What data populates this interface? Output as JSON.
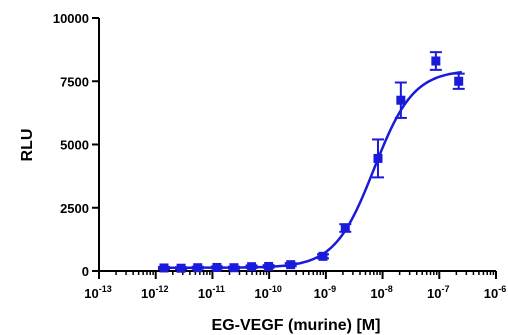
{
  "chart_data": {
    "type": "scatter",
    "title": "",
    "xlabel": "EG-VEGF (murine) [M]",
    "ylabel": "RLU",
    "x_scale": "log",
    "xlim": [
      1e-13,
      1e-06
    ],
    "ylim": [
      0,
      10000
    ],
    "x_ticks": [
      {
        "base": "10",
        "exp": "-13",
        "value": 1e-13
      },
      {
        "base": "10",
        "exp": "-12",
        "value": 1e-12
      },
      {
        "base": "10",
        "exp": "-11",
        "value": 1e-11
      },
      {
        "base": "10",
        "exp": "-10",
        "value": 1e-10
      },
      {
        "base": "10",
        "exp": "-9",
        "value": 1e-09
      },
      {
        "base": "10",
        "exp": "-8",
        "value": 1e-08
      },
      {
        "base": "10",
        "exp": "-7",
        "value": 1e-07
      },
      {
        "base": "10",
        "exp": "-6",
        "value": 1e-06
      }
    ],
    "y_ticks": [
      "0",
      "2500",
      "5000",
      "7500",
      "10000"
    ],
    "y_tick_values": [
      0,
      2500,
      5000,
      7500,
      10000
    ],
    "grid": false,
    "series": [
      {
        "color": "#1a1adb",
        "marker": "square",
        "points": [
          {
            "x": 1.4e-12,
            "y": 120,
            "err": 40
          },
          {
            "x": 2.8e-12,
            "y": 110,
            "err": 40
          },
          {
            "x": 5.5e-12,
            "y": 130,
            "err": 40
          },
          {
            "x": 1.2e-11,
            "y": 140,
            "err": 40
          },
          {
            "x": 2.4e-11,
            "y": 130,
            "err": 40
          },
          {
            "x": 4.9e-11,
            "y": 170,
            "err": 50
          },
          {
            "x": 9.8e-11,
            "y": 180,
            "err": 50
          },
          {
            "x": 2.4e-10,
            "y": 250,
            "err": 60
          },
          {
            "x": 8.9e-10,
            "y": 580,
            "err": 80
          },
          {
            "x": 2.2e-09,
            "y": 1700,
            "err": 150
          },
          {
            "x": 8.3e-09,
            "y": 4450,
            "err": 750
          },
          {
            "x": 2.1e-08,
            "y": 6750,
            "err": 700
          },
          {
            "x": 8.7e-08,
            "y": 8300,
            "err": 350
          },
          {
            "x": 2.2e-07,
            "y": 7500,
            "err": 300
          }
        ],
        "fit": {
          "bottom": 130,
          "top": 7950,
          "log_ec50": -8.15,
          "hill": 1.25
        }
      }
    ]
  }
}
